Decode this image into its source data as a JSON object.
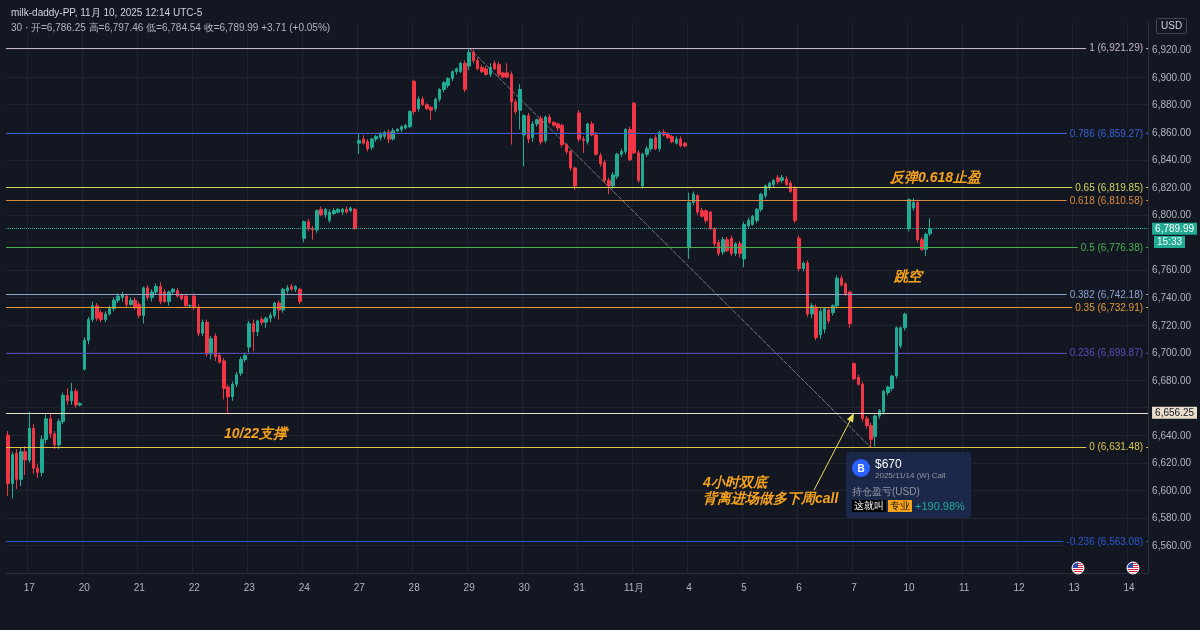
{
  "chart_data": {
    "type": "candlestick",
    "title": "milk-daddy-PP, 11月 10, 2025 12:14 UTC-5",
    "subtitle": "30 · 开=6,786.25 高=6,797.46 低=6,784.54 收=6,789.99 +3.71 (+0.05%)",
    "categories": [
      null,
      null,
      null,
      null,
      null,
      "17",
      null,
      null,
      null,
      null,
      null,
      null,
      null,
      null,
      null,
      null,
      null,
      null,
      "20",
      null,
      null,
      null,
      null,
      null,
      null,
      null,
      null,
      null,
      null,
      null,
      null,
      "21",
      null,
      null,
      null,
      null,
      null,
      null,
      null,
      null,
      null,
      null,
      null,
      null,
      "22",
      null,
      null,
      null,
      null,
      null,
      null,
      null,
      null,
      null,
      null,
      null,
      null,
      "23",
      null,
      null,
      null,
      null,
      null,
      null,
      null,
      null,
      null,
      null,
      null,
      null,
      "24",
      null,
      null,
      null,
      null,
      null,
      null,
      null,
      null,
      null,
      null,
      null,
      null,
      "27",
      null,
      null,
      null,
      null,
      null,
      null,
      null,
      null,
      null,
      null,
      null,
      null,
      "28",
      null,
      null,
      null,
      null,
      null,
      null,
      null,
      null,
      null,
      null,
      null,
      null,
      "29",
      null,
      null,
      null,
      null,
      null,
      null,
      null,
      null,
      null,
      null,
      null,
      null,
      "30",
      null,
      null,
      null,
      null,
      null,
      null,
      null,
      null,
      null,
      null,
      null,
      null,
      "31",
      null,
      null,
      null,
      null,
      null,
      null,
      null,
      null,
      null,
      null,
      null,
      null,
      "11月",
      null,
      null,
      null,
      null,
      null,
      null,
      null,
      null,
      null,
      null,
      null,
      null,
      "4",
      null,
      null,
      null,
      null,
      null,
      null,
      null,
      null,
      null,
      null,
      null,
      null,
      "5",
      null,
      null,
      null,
      null,
      null,
      null,
      null,
      null,
      null,
      null,
      null,
      null,
      "6",
      null,
      null,
      null,
      null,
      null,
      null,
      null,
      null,
      null,
      null,
      null,
      null,
      "7",
      null,
      null,
      null,
      null,
      null,
      null,
      null,
      null,
      null,
      null,
      null,
      null,
      "10",
      null,
      null,
      null,
      null,
      null,
      null,
      null,
      null,
      null,
      null,
      null,
      null,
      "11",
      null,
      null,
      null,
      null,
      null,
      null,
      null,
      null,
      null,
      null,
      null,
      null,
      "12",
      null,
      null,
      null,
      null,
      null,
      null,
      null,
      null,
      null,
      null,
      null,
      null,
      "13",
      null,
      null,
      null,
      null,
      null,
      null,
      null,
      null,
      null,
      null,
      null,
      null,
      "14",
      null,
      null,
      null,
      null
    ],
    "series": [
      {
        "ohlc": [
          [
            6640,
            6643,
            6596,
            6605
          ],
          [
            6605,
            6628,
            6594,
            6626
          ],
          [
            6627,
            6630,
            6601,
            6608
          ],
          [
            6608,
            6631,
            6603,
            6628
          ],
          [
            6628,
            6632,
            6611,
            6622
          ],
          [
            6622,
            6657,
            6620,
            6645
          ],
          [
            6645,
            6648,
            6612,
            6616
          ],
          [
            6616,
            6619,
            6609,
            6613
          ],
          [
            6613,
            6640,
            6610,
            6637
          ],
          [
            6637,
            6655,
            6634,
            6652
          ],
          [
            6652,
            6656,
            6638,
            6641
          ],
          [
            6641,
            6643,
            6630,
            6633
          ],
          [
            6633,
            6652,
            6630,
            6650
          ],
          [
            6650,
            6671,
            6648,
            6669
          ],
          [
            6669,
            6674,
            6662,
            6665
          ],
          [
            6665,
            6678,
            6662,
            6672
          ],
          [
            6672,
            6674,
            6660,
            6662
          ],
          [
            6662,
            6664,
            6661,
            6663
          ],
          [
            6688,
            6711,
            6687,
            6709
          ],
          [
            6709,
            6726,
            6706,
            6724
          ],
          [
            6724,
            6737,
            6722,
            6734
          ],
          [
            6734,
            6736,
            6723,
            6725
          ],
          [
            6729,
            6731,
            6722,
            6724
          ],
          [
            6724,
            6730,
            6722,
            6728
          ],
          [
            6728,
            6734,
            6727,
            6732
          ],
          [
            6732,
            6740,
            6730,
            6738
          ],
          [
            6738,
            6743,
            6736,
            6741
          ],
          [
            6740,
            6744,
            6737,
            6742
          ],
          [
            6741,
            6742,
            6733,
            6735
          ],
          [
            6735,
            6740,
            6734,
            6738
          ],
          [
            6738,
            6740,
            6731,
            6733
          ],
          [
            6735,
            6737,
            6725,
            6727
          ],
          [
            6727,
            6748,
            6721,
            6747
          ],
          [
            6747,
            6749,
            6738,
            6740
          ],
          [
            6740,
            6746,
            6737,
            6744
          ],
          [
            6744,
            6750,
            6742,
            6748
          ],
          [
            6748,
            6751,
            6735,
            6737
          ],
          [
            6744,
            6746,
            6736,
            6737
          ],
          [
            6737,
            6745,
            6734,
            6744
          ],
          [
            6744,
            6747,
            6742,
            6746
          ],
          [
            6745,
            6747,
            6740,
            6741
          ],
          [
            6742,
            6743,
            6738,
            6739
          ],
          [
            6741,
            6742,
            6733,
            6734
          ],
          [
            6734,
            6735,
            6733,
            6734
          ],
          [
            6741,
            6743,
            6731,
            6733
          ],
          [
            6733,
            6735,
            6712,
            6714
          ],
          [
            6714,
            6724,
            6712,
            6722
          ],
          [
            6722,
            6724,
            6697,
            6699
          ],
          [
            6699,
            6712,
            6695,
            6710
          ],
          [
            6712,
            6714,
            6694,
            6697
          ],
          [
            6698,
            6700,
            6692,
            6693
          ],
          [
            6694,
            6696,
            6666,
            6674
          ],
          [
            6675,
            6677,
            6656.25,
            6668
          ],
          [
            6668,
            6679,
            6665,
            6677
          ],
          [
            6677,
            6686,
            6675,
            6684
          ],
          [
            6685,
            6697,
            6683,
            6695
          ],
          [
            6695,
            6700,
            6693,
            6698
          ],
          [
            6704,
            6723,
            6700,
            6721
          ],
          [
            6721,
            6724,
            6701,
            6715
          ],
          [
            6715,
            6724,
            6712,
            6723
          ],
          [
            6724,
            6726,
            6720,
            6722
          ],
          [
            6722,
            6726,
            6718,
            6725
          ],
          [
            6725,
            6729,
            6722,
            6727
          ],
          [
            6727,
            6737,
            6725,
            6736
          ],
          [
            6736,
            6738,
            6724,
            6731
          ],
          [
            6731,
            6747,
            6729,
            6746
          ],
          [
            6745,
            6749,
            6743,
            6747
          ],
          [
            6748,
            6750,
            6745,
            6746
          ],
          [
            6746,
            6749,
            6744,
            6748
          ],
          [
            6746,
            6747,
            6735,
            6737
          ],
          [
            6783,
            6796,
            6780,
            6795
          ],
          [
            6795,
            6797,
            6788,
            6790
          ],
          [
            6790,
            6792,
            6782,
            6789
          ],
          [
            6789,
            6804,
            6787,
            6803
          ],
          [
            6804,
            6806,
            6799,
            6800
          ],
          [
            6800,
            6805,
            6798,
            6804
          ],
          [
            6796,
            6804,
            6794,
            6802
          ],
          [
            6801,
            6805,
            6800,
            6803
          ],
          [
            6802,
            6805,
            6801,
            6804
          ],
          [
            6802,
            6805,
            6800,
            6804
          ],
          [
            6804,
            6806,
            6801,
            6802
          ],
          [
            6803,
            6806,
            6802,
            6805
          ],
          [
            6804,
            6805,
            6789,
            6790
          ],
          [
            6852,
            6859,
            6844,
            6854
          ],
          [
            6855,
            6858,
            6851,
            6852
          ],
          [
            6853,
            6855,
            6846,
            6848
          ],
          [
            6849,
            6856,
            6847,
            6855
          ],
          [
            6855,
            6858,
            6853,
            6857
          ],
          [
            6856,
            6860,
            6854,
            6859
          ],
          [
            6857,
            6861,
            6855,
            6860
          ],
          [
            6860,
            6862,
            6852,
            6855
          ],
          [
            6855,
            6863,
            6854,
            6861
          ],
          [
            6861,
            6863,
            6860,
            6862
          ],
          [
            6862,
            6865,
            6860,
            6864
          ],
          [
            6863,
            6866,
            6862,
            6865
          ],
          [
            6864,
            6876,
            6863,
            6875
          ],
          [
            6897,
            6898,
            6873,
            6875
          ],
          [
            6877,
            6886,
            6875,
            6884
          ],
          [
            6884,
            6886,
            6879,
            6880
          ],
          [
            6880,
            6881,
            6876,
            6877
          ],
          [
            6878,
            6879,
            6869,
            6876
          ],
          [
            6877,
            6885,
            6875,
            6884
          ],
          [
            6884,
            6892,
            6882,
            6891
          ],
          [
            6891,
            6897,
            6889,
            6896
          ],
          [
            6894,
            6900,
            6892,
            6899
          ],
          [
            6899,
            6905,
            6897,
            6904
          ],
          [
            6904,
            6907,
            6902,
            6906
          ],
          [
            6904,
            6911,
            6903,
            6910
          ],
          [
            6910,
            6912,
            6889,
            6891
          ],
          [
            6908,
            6921.29,
            6905,
            6918
          ],
          [
            6918,
            6920,
            6910,
            6912
          ],
          [
            6912,
            6914,
            6905,
            6906
          ],
          [
            6907,
            6909,
            6903,
            6904
          ],
          [
            6906,
            6908,
            6901,
            6902
          ],
          [
            6902,
            6910,
            6900,
            6907
          ],
          [
            6910,
            6912,
            6905,
            6906
          ],
          [
            6909,
            6911,
            6900,
            6902
          ],
          [
            6903,
            6904,
            6899,
            6900
          ],
          [
            6903,
            6910,
            6899,
            6900
          ],
          [
            6902,
            6904,
            6851,
            6882
          ],
          [
            6882,
            6884,
            6873,
            6875
          ],
          [
            6876,
            6895,
            6862,
            6891
          ],
          [
            6858,
            6873,
            6835,
            6872
          ],
          [
            6872,
            6874,
            6852,
            6855
          ],
          [
            6856,
            6868,
            6853,
            6866
          ],
          [
            6866,
            6870,
            6864,
            6869
          ],
          [
            6870,
            6872,
            6851,
            6853
          ],
          [
            6854,
            6872,
            6852,
            6871
          ],
          [
            6871,
            6873,
            6866,
            6867
          ],
          [
            6867,
            6868,
            6864,
            6865
          ],
          [
            6866,
            6867,
            6861,
            6863
          ],
          [
            6865,
            6866,
            6849,
            6851
          ],
          [
            6851,
            6852,
            6844,
            6846
          ],
          [
            6846,
            6847,
            6832,
            6834
          ],
          [
            6834,
            6835,
            6818,
            6821
          ],
          [
            6874,
            6876,
            6853,
            6855
          ],
          [
            6855,
            6857,
            6845,
            6854
          ],
          [
            6853,
            6867,
            6851,
            6866
          ],
          [
            6866,
            6868,
            6857,
            6858
          ],
          [
            6858,
            6860,
            6843,
            6844
          ],
          [
            6843,
            6845,
            6835,
            6837
          ],
          [
            6838,
            6840,
            6823,
            6825
          ],
          [
            6825,
            6827,
            6815,
            6821
          ],
          [
            6821,
            6831,
            6819,
            6829
          ],
          [
            6828,
            6845,
            6826,
            6844
          ],
          [
            6844,
            6848,
            6842,
            6846
          ],
          [
            6846,
            6863,
            6844,
            6862
          ],
          [
            6862,
            6864,
            6839,
            6840
          ],
          [
            6881,
            6882,
            6844,
            6845
          ],
          [
            6845,
            6847,
            6823,
            6825
          ],
          [
            6821,
            6845,
            6819,
            6844
          ],
          [
            6844,
            6850,
            6842,
            6848
          ],
          [
            6848,
            6856,
            6846,
            6855
          ],
          [
            6856,
            6858,
            6847,
            6848
          ],
          [
            6848,
            6861,
            6846,
            6860
          ],
          [
            6860,
            6862,
            6857,
            6858
          ],
          [
            6859,
            6860,
            6855,
            6856
          ],
          [
            6857,
            6858,
            6852,
            6853
          ],
          [
            6852,
            6857,
            6851,
            6855
          ],
          [
            6855,
            6857,
            6849,
            6850
          ],
          [
            6852,
            6853,
            6849,
            6850
          ],
          [
            6776,
            6816,
            6768,
            6809
          ],
          [
            6809,
            6817,
            6807,
            6815
          ],
          [
            6814,
            6815,
            6800,
            6802
          ],
          [
            6803,
            6805,
            6798,
            6799
          ],
          [
            6803,
            6804,
            6794,
            6796
          ],
          [
            6802,
            6803,
            6789,
            6790
          ],
          [
            6790,
            6791,
            6777,
            6779
          ],
          [
            6780,
            6782,
            6770,
            6772
          ],
          [
            6773,
            6784,
            6771,
            6782
          ],
          [
            6782,
            6784,
            6773,
            6774
          ],
          [
            6783,
            6785,
            6770,
            6772
          ],
          [
            6772,
            6780,
            6770,
            6779
          ],
          [
            6779,
            6781,
            6769,
            6772
          ],
          [
            6768,
            6795,
            6762,
            6793
          ],
          [
            6792,
            6798,
            6790,
            6796
          ],
          [
            6793,
            6800,
            6792,
            6799
          ],
          [
            6796,
            6805,
            6794,
            6804
          ],
          [
            6804,
            6816,
            6802,
            6815
          ],
          [
            6814,
            6822,
            6812,
            6821
          ],
          [
            6820,
            6824,
            6818,
            6823
          ],
          [
            6822,
            6826,
            6820,
            6825
          ],
          [
            6827,
            6829,
            6822,
            6824
          ],
          [
            6825,
            6829,
            6823,
            6827
          ],
          [
            6826,
            6828,
            6821,
            6822
          ],
          [
            6823,
            6825,
            6816,
            6817
          ],
          [
            6819,
            6821,
            6794,
            6796
          ],
          [
            6783,
            6785,
            6759,
            6761
          ],
          [
            6761,
            6766,
            6759,
            6765
          ],
          [
            6765,
            6767,
            6726,
            6728
          ],
          [
            6728,
            6736,
            6725,
            6734
          ],
          [
            6733,
            6735,
            6709,
            6711
          ],
          [
            6713,
            6732,
            6710,
            6730
          ],
          [
            6717,
            6733,
            6714,
            6732
          ],
          [
            6731,
            6733,
            6721,
            6723
          ],
          [
            6729,
            6735,
            6727,
            6734
          ],
          [
            6734,
            6756,
            6732,
            6754
          ],
          [
            6754,
            6756,
            6748,
            6749
          ],
          [
            6750,
            6751,
            6741,
            6742
          ],
          [
            6744,
            6745,
            6718,
            6721
          ],
          [
            6692,
            6693,
            6680,
            6681
          ],
          [
            6682,
            6684,
            6676,
            6677
          ],
          [
            6677,
            6679,
            6650,
            6652
          ],
          [
            6652,
            6654,
            6645,
            6647
          ],
          [
            6647,
            6649,
            6631.48,
            6637
          ],
          [
            6639,
            6655,
            6632,
            6654
          ],
          [
            6654,
            6659,
            6652,
            6658
          ],
          [
            6657,
            6673,
            6655,
            6672
          ],
          [
            6671,
            6676,
            6669,
            6675
          ],
          [
            6674,
            6684,
            6672,
            6683
          ],
          [
            6683,
            6719,
            6681,
            6718
          ],
          [
            6705,
            6719,
            6703,
            6718
          ],
          [
            6718,
            6729,
            6716,
            6728
          ],
          [
            6790,
            6812,
            6788,
            6811
          ],
          [
            6805,
            6812,
            6803,
            6809
          ],
          [
            6809,
            6811,
            6780,
            6782
          ],
          [
            6782,
            6784,
            6774,
            6775
          ],
          [
            6775,
            6787,
            6770,
            6786
          ],
          [
            6786.25,
            6797.46,
            6784.54,
            6789.99
          ],
          null,
          null,
          null,
          null,
          null,
          null,
          null,
          null,
          null,
          null,
          null,
          null,
          null,
          null,
          null,
          null,
          null,
          null,
          null,
          null,
          null,
          null,
          null,
          null,
          null,
          null,
          null,
          null,
          null,
          null,
          null,
          null,
          null,
          null,
          null,
          null,
          null,
          null,
          null,
          null,
          null,
          null,
          null,
          null,
          null,
          null,
          null,
          null,
          null,
          null,
          null
        ],
        "colors": [
          "#f23645",
          "#22ab94",
          "#f23645",
          "#22ab94",
          "#f23645",
          "#22ab94",
          "#f23645",
          "#f23645",
          "#22ab94",
          "#22ab94",
          "#f23645",
          "#f23645",
          "#22ab94",
          "#22ab94",
          "#f23645",
          "#22ab94",
          "#f23645",
          "#22ab94",
          "#22ab94",
          "#22ab94",
          "#22ab94",
          "#f23645",
          "#f23645",
          "#22ab94",
          "#22ab94",
          "#22ab94",
          "#22ab94",
          "#22ab94",
          "#f23645",
          "#22ab94",
          "#f23645",
          "#f23645",
          "#22ab94",
          "#f23645",
          "#22ab94",
          "#22ab94",
          "#f23645",
          "#f23645",
          "#22ab94",
          "#22ab94",
          "#f23645",
          "#f23645",
          "#f23645",
          "#22ab94",
          "#f23645",
          "#f23645",
          "#22ab94",
          "#f23645",
          "#22ab94",
          "#f23645",
          "#f23645",
          "#f23645",
          "#f23645",
          "#22ab94",
          "#22ab94",
          "#22ab94",
          "#22ab94",
          "#22ab94",
          "#f23645",
          "#22ab94",
          "#f23645",
          "#22ab94",
          "#22ab94",
          "#22ab94",
          "#f23645",
          "#22ab94",
          "#22ab94",
          "#f23645",
          "#22ab94",
          "#f23645",
          "#22ab94",
          "#f23645",
          "#f23645",
          "#22ab94",
          "#f23645",
          "#22ab94",
          "#22ab94",
          "#22ab94",
          "#22ab94",
          "#22ab94",
          "#f23645",
          "#22ab94",
          "#f23645",
          "#22ab94",
          "#f23645",
          "#f23645",
          "#22ab94",
          "#22ab94",
          "#22ab94",
          "#22ab94",
          "#f23645",
          "#22ab94",
          "#22ab94",
          "#22ab94",
          "#22ab94",
          "#22ab94",
          "#f23645",
          "#22ab94",
          "#f23645",
          "#f23645",
          "#f23645",
          "#22ab94",
          "#22ab94",
          "#22ab94",
          "#22ab94",
          "#22ab94",
          "#22ab94",
          "#22ab94",
          "#f23645",
          "#22ab94",
          "#f23645",
          "#f23645",
          "#f23645",
          "#f23645",
          "#22ab94",
          "#f23645",
          "#f23645",
          "#f23645",
          "#f23645",
          "#f23645",
          "#f23645",
          "#22ab94",
          "#22ab94",
          "#f23645",
          "#22ab94",
          "#22ab94",
          "#f23645",
          "#22ab94",
          "#f23645",
          "#f23645",
          "#f23645",
          "#f23645",
          "#f23645",
          "#f23645",
          "#f23645",
          "#f23645",
          "#f23645",
          "#22ab94",
          "#f23645",
          "#f23645",
          "#f23645",
          "#f23645",
          "#f23645",
          "#22ab94",
          "#22ab94",
          "#22ab94",
          "#22ab94",
          "#f23645",
          "#f23645",
          "#f23645",
          "#22ab94",
          "#22ab94",
          "#22ab94",
          "#f23645",
          "#22ab94",
          "#f23645",
          "#f23645",
          "#f23645",
          "#22ab94",
          "#f23645",
          "#f23645",
          "#22ab94",
          "#22ab94",
          "#f23645",
          "#f23645",
          "#f23645",
          "#f23645",
          "#f23645",
          "#f23645",
          "#22ab94",
          "#f23645",
          "#f23645",
          "#22ab94",
          "#f23645",
          "#22ab94",
          "#22ab94",
          "#22ab94",
          "#22ab94",
          "#22ab94",
          "#22ab94",
          "#22ab94",
          "#22ab94",
          "#f23645",
          "#22ab94",
          "#f23645",
          "#f23645",
          "#f23645",
          "#f23645",
          "#22ab94",
          "#f23645",
          "#22ab94",
          "#f23645",
          "#22ab94",
          "#22ab94",
          "#f23645",
          "#22ab94",
          "#22ab94",
          "#f23645",
          "#f23645",
          "#f23645",
          "#f23645",
          "#f23645",
          "#f23645",
          "#f23645",
          "#f23645",
          "#22ab94",
          "#22ab94",
          "#22ab94",
          "#22ab94",
          "#22ab94",
          "#22ab94",
          "#22ab94",
          "#22ab94",
          "#22ab94",
          "#22ab94",
          "#f23645",
          "#f23645",
          "#22ab94",
          "#22ab94",
          null,
          null,
          null,
          null,
          null,
          null,
          null,
          null,
          null,
          null,
          null,
          null,
          null,
          null,
          null,
          null,
          null,
          null,
          null,
          null,
          null,
          null,
          null,
          null,
          null,
          null,
          null,
          null,
          null,
          null,
          null,
          null,
          null,
          null,
          null,
          null,
          null,
          null,
          null,
          null,
          null,
          null,
          null,
          null,
          null,
          null,
          null,
          null,
          null,
          null,
          null
        ]
      },
      {
        "type": "line",
        "color": "#787b86",
        "line_style": "dashed",
        "marker": "none",
        "values": [
          null,
          null,
          null,
          null,
          null,
          null,
          null,
          null,
          null,
          null,
          null,
          null,
          null,
          null,
          null,
          null,
          null,
          null,
          null,
          null,
          null,
          null,
          null,
          null,
          null,
          null,
          null,
          null,
          null,
          null,
          null,
          null,
          null,
          null,
          null,
          null,
          null,
          null,
          null,
          null,
          null,
          null,
          null,
          null,
          null,
          null,
          null,
          null,
          null,
          null,
          null,
          null,
          null,
          null,
          null,
          null,
          null,
          null,
          null,
          null,
          null,
          null,
          null,
          null,
          null,
          null,
          null,
          null,
          null,
          null,
          null,
          null,
          null,
          null,
          null,
          null,
          null,
          null,
          null,
          null,
          null,
          null,
          null,
          null,
          null,
          null,
          null,
          null,
          null,
          null,
          null,
          null,
          null,
          null,
          null,
          null,
          null,
          null,
          null,
          null,
          null,
          null,
          null,
          null,
          null,
          null,
          null,
          null,
          null,
          6921,
          null,
          null,
          null,
          null,
          null,
          null,
          null,
          null,
          null,
          null,
          null,
          null,
          null,
          null,
          null,
          null,
          null,
          null,
          null,
          null,
          null,
          null,
          null,
          null,
          null,
          null,
          null,
          null,
          null,
          null,
          null,
          null,
          null,
          null,
          null,
          null,
          null,
          null,
          null,
          null,
          null,
          null,
          null,
          null,
          null,
          null,
          null,
          null,
          null,
          null,
          null,
          null,
          null,
          null,
          null,
          null,
          null,
          null,
          null,
          null,
          null,
          null,
          null,
          null,
          null,
          null,
          null,
          null,
          null,
          null,
          null,
          null,
          null,
          null,
          null,
          null,
          null,
          null,
          null,
          null,
          null,
          null,
          null,
          null,
          null,
          null,
          null,
          null,
          null,
          null,
          null,
          null,
          null,
          null,
          6631,
          null,
          null,
          null,
          null,
          null,
          null,
          null,
          null,
          null,
          null,
          null,
          null,
          null,
          null,
          null,
          null,
          null,
          null,
          null,
          null,
          null,
          null,
          null,
          null,
          null,
          null,
          null,
          null,
          null,
          null,
          null,
          null,
          null,
          null,
          null,
          null,
          null,
          null,
          null,
          null,
          null,
          null,
          null,
          null,
          null,
          null,
          null,
          null,
          null,
          null,
          null,
          null,
          null,
          null,
          null,
          null,
          null,
          null,
          null,
          null,
          null,
          null,
          null,
          null,
          null
        ]
      }
    ],
    "ylim": [
      6540,
      6940
    ],
    "yticks": [
      {
        "value": 6560,
        "label": "6,560.00"
      },
      {
        "value": 6580,
        "label": "6,580.00"
      },
      {
        "value": 6600,
        "label": "6,600.00"
      },
      {
        "value": 6620,
        "label": "6,620.00"
      },
      {
        "value": 6640,
        "label": "6,640.00"
      },
      {
        "value": 6656.25,
        "label": "6,656.25"
      },
      {
        "value": 6660,
        "label": null
      },
      {
        "value": 6680,
        "label": "6,680.00"
      },
      {
        "value": 6700,
        "label": "6,700.00"
      },
      {
        "value": 6720,
        "label": "6,720.00"
      },
      {
        "value": 6740,
        "label": "6,740.00"
      },
      {
        "value": 6760,
        "label": "6,760.00"
      },
      {
        "value": 6780,
        "label": null
      },
      {
        "value": 6789.99,
        "label": "6,789.99"
      },
      {
        "value": 6800,
        "label": "6,800.00"
      },
      {
        "value": 6820,
        "label": "6,820.00"
      },
      {
        "value": 6840,
        "label": "6,840.00"
      },
      {
        "value": 6860,
        "label": "6,860.00"
      },
      {
        "value": 6880,
        "label": "6,880.00"
      },
      {
        "value": 6900,
        "label": "6,900.00"
      },
      {
        "value": 6920,
        "label": "6,920.00"
      }
    ],
    "grid": true,
    "ref_lines": [
      {
        "axis": "y",
        "value": 6921.29,
        "label": "1 (6,921.29)",
        "color": "#c4b5c4"
      },
      {
        "axis": "y",
        "value": 6859.27,
        "label": "0.786 (6,859.27)",
        "color": "#3d5fd6"
      },
      {
        "axis": "y",
        "value": 6819.85,
        "label": "0.65 (6,819.85)",
        "color": "#d6d35a"
      },
      {
        "axis": "y",
        "value": 6810.58,
        "label": "0.618 (6,810.58)",
        "color": "#d98a3f"
      },
      {
        "axis": "y",
        "value": 6789.99,
        "color": "#22ab94",
        "line_style": "dotted"
      },
      {
        "axis": "y",
        "value": 6776.38,
        "label": "0.5 (6,776.38)",
        "color": "#4caf50"
      },
      {
        "axis": "y",
        "value": 6742.18,
        "label": "0.382 (6,742.18)",
        "color": "#8ea4cf"
      },
      {
        "axis": "y",
        "value": 6732.91,
        "label": "0.35 (6,732.91)",
        "color": "#e39b34"
      },
      {
        "axis": "y",
        "value": 6699.87,
        "label": "0.236 (6,699.87)",
        "color": "#5a4cb8"
      },
      {
        "axis": "y",
        "value": 6656.25,
        "color": "#eadfcb"
      },
      {
        "axis": "y",
        "value": 6631.48,
        "label": "0 (6,631.48)",
        "color": "#d9c64a"
      },
      {
        "axis": "y",
        "value": 6563.08,
        "label": "-0.236 (6,563.08)",
        "color": "#2f57cf"
      }
    ],
    "annotations": [
      "USD",
      "15:33",
      "10/22支撑",
      "反弹0.618止盈",
      "跳空",
      "4小时双底",
      {
        "text": "背离进场做多下周call",
        "x": "7",
        "y": 6656.25
      },
      "B",
      "$670",
      "2025/11/14 (W) Call",
      "持仓盈亏(USD)",
      "这就叫",
      "专业",
      "+190.98%"
    ]
  }
}
